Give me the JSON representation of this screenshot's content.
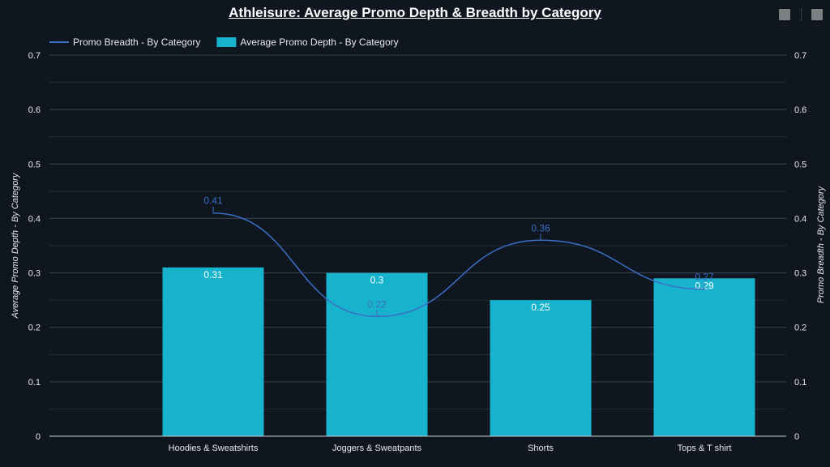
{
  "title": "Athleisure: Average Promo Depth & Breadth by Category",
  "chart_data": {
    "type": "bar",
    "title": "Athleisure: Average Promo Depth & Breadth by Category",
    "categories": [
      "Hoodies & Sweatshirts",
      "Joggers & Sweatpants",
      "Shorts",
      "Tops & T shirt"
    ],
    "series": [
      {
        "name": "Promo Breadth - By Category",
        "type": "line",
        "axis": "right",
        "values": [
          0.41,
          0.22,
          0.36,
          0.27
        ],
        "labels": [
          "0.41",
          "0.22",
          "0.36",
          "0.27"
        ],
        "color": "#3a6fc4"
      },
      {
        "name": "Average Promo Depth - By Category",
        "type": "bar",
        "axis": "left",
        "values": [
          0.31,
          0.3,
          0.25,
          0.29
        ],
        "labels": [
          "0.31",
          "0.3",
          "0.25",
          "0.29"
        ],
        "color": "#17b3cc"
      }
    ],
    "ylabel": "Average Promo Depth - By Category",
    "y2label": "Promo Breadth - By Category",
    "ylim": [
      0,
      0.7
    ],
    "y2lim": [
      0,
      0.7
    ],
    "yticks": [
      "0",
      "0.1",
      "0.2",
      "0.3",
      "0.4",
      "0.5",
      "0.6",
      "0.7"
    ],
    "y2ticks": [
      "0",
      "0.1",
      "0.2",
      "0.3",
      "0.4",
      "0.5",
      "0.6",
      "0.7"
    ],
    "grid": true,
    "legend_position": "top-left"
  }
}
